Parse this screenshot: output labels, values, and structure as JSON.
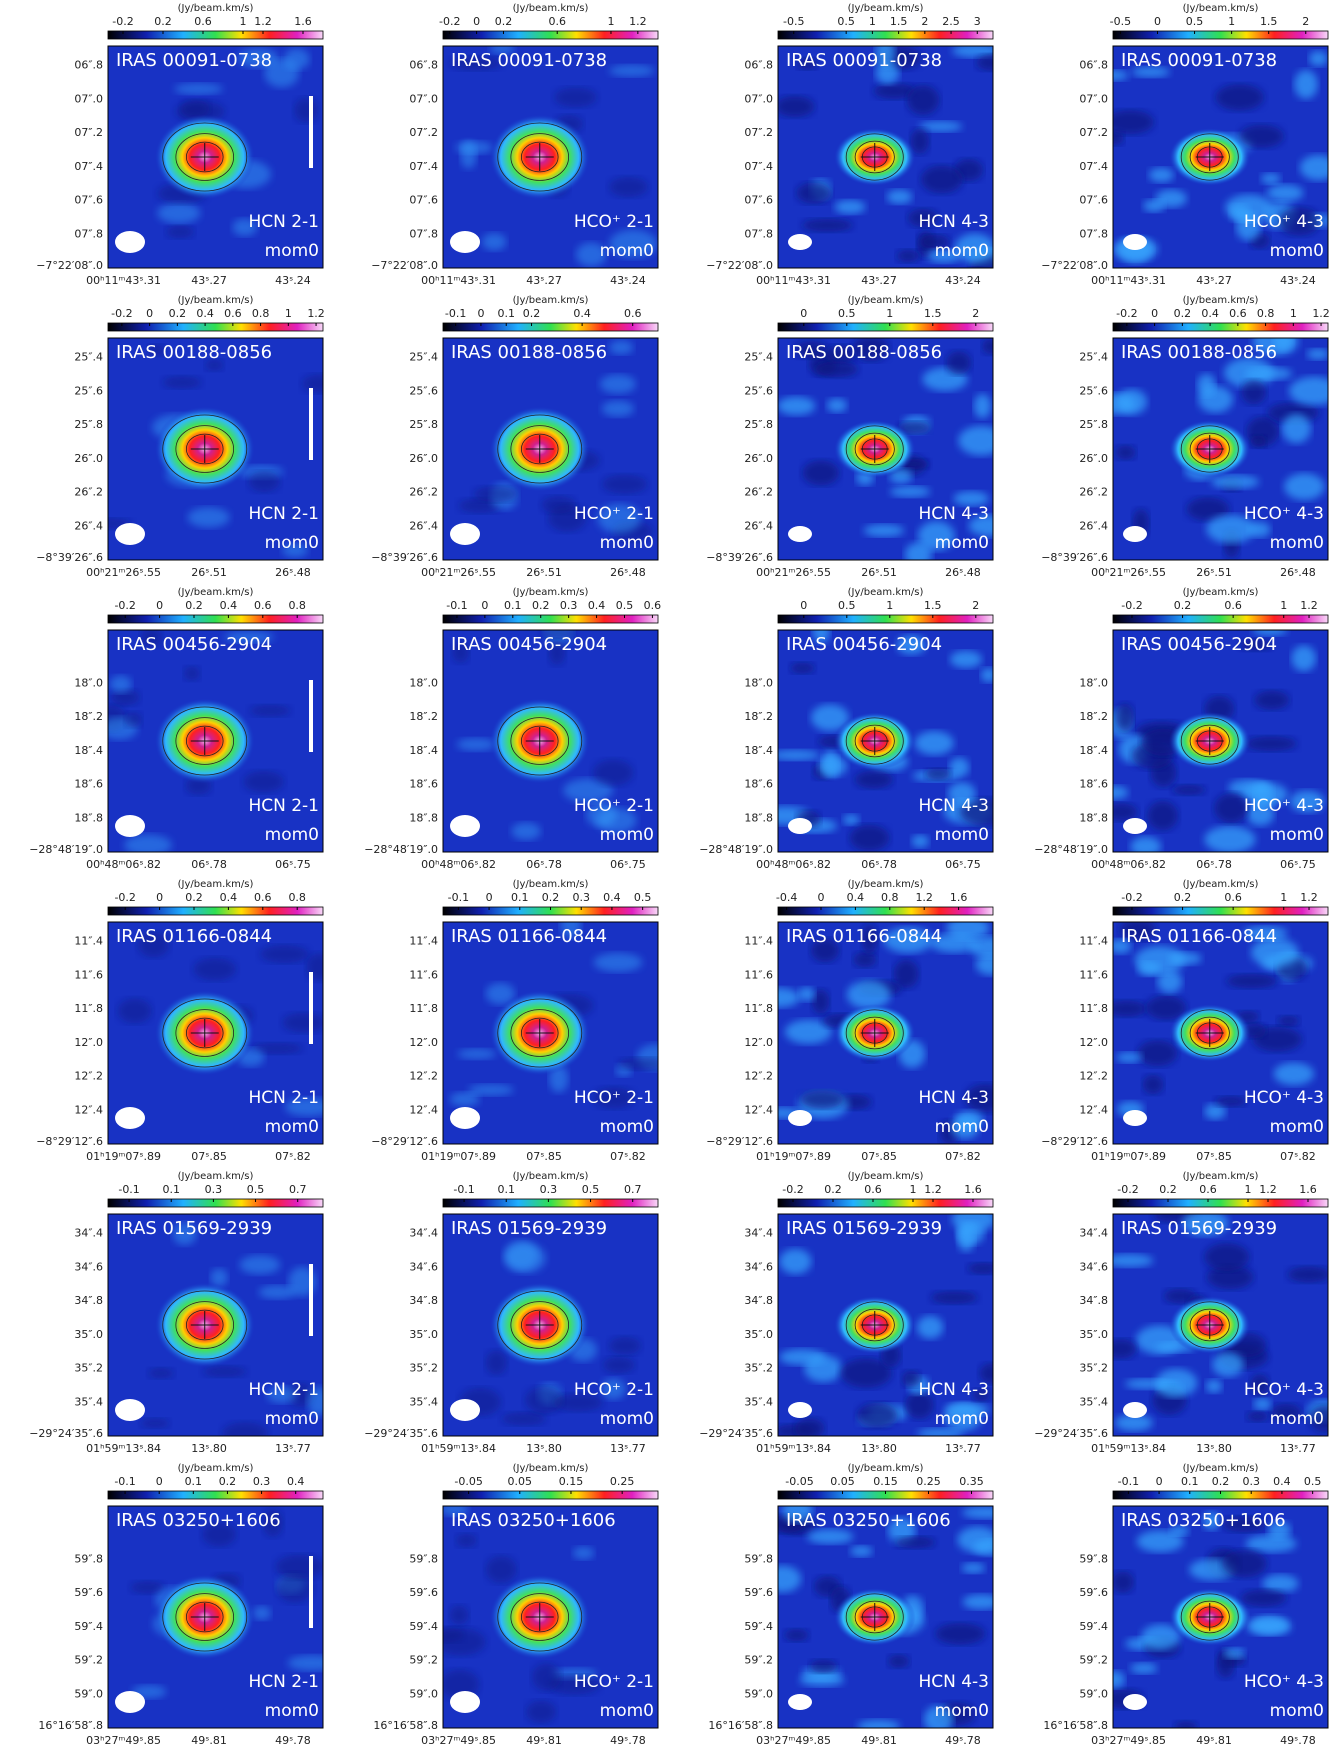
{
  "colorbar_label": "(Jy/beam.km/s)",
  "moment": "mom0",
  "lines": [
    "HCN 2-1",
    "HCO⁺ 2-1",
    "HCN 4-3",
    "HCO⁺ 4-3"
  ],
  "rows": [
    {
      "target": "IRAS 00091-0738",
      "dec_ticks": [
        "06″.8",
        "07″.0",
        "07″.2",
        "07″.4",
        "07″.6",
        "07″.8",
        "−7°22′08″.0"
      ],
      "ra_ticks": [
        "00ʰ11ᵐ43ˢ.31",
        "43ˢ.27",
        "43ˢ.24"
      ],
      "panels": [
        {
          "clim": [
            -0.35,
            1.8
          ],
          "cticks": [
            -0.2,
            0.2,
            0.6,
            1,
            1.2,
            1.6
          ]
        },
        {
          "clim": [
            -0.25,
            1.35
          ],
          "cticks": [
            -0.2,
            0,
            0.2,
            0.6,
            1,
            1.2
          ]
        },
        {
          "clim": [
            -0.8,
            3.3
          ],
          "cticks": [
            -0.5,
            0.5,
            1,
            1.5,
            2,
            2.5,
            3
          ]
        },
        {
          "clim": [
            -0.6,
            2.3
          ],
          "cticks": [
            -0.5,
            0,
            0.5,
            1,
            1.5,
            2
          ]
        }
      ]
    },
    {
      "target": "IRAS 00188-0856",
      "dec_ticks": [
        "25″.4",
        "25″.6",
        "25″.8",
        "26″.0",
        "26″.2",
        "26″.4",
        "−8°39′26″.6"
      ],
      "ra_ticks": [
        "00ʰ21ᵐ26ˢ.55",
        "26ˢ.51",
        "26ˢ.48"
      ],
      "panels": [
        {
          "clim": [
            -0.3,
            1.25
          ],
          "cticks": [
            -0.2,
            0,
            0.2,
            0.4,
            0.6,
            0.8,
            1,
            1.2
          ]
        },
        {
          "clim": [
            -0.15,
            0.7
          ],
          "cticks": [
            -0.1,
            0,
            0.1,
            0.2,
            0.4,
            0.6
          ]
        },
        {
          "clim": [
            -0.3,
            2.2
          ],
          "cticks": [
            0,
            0.5,
            1,
            1.5,
            2
          ]
        },
        {
          "clim": [
            -0.3,
            1.25
          ],
          "cticks": [
            -0.2,
            0,
            0.2,
            0.4,
            0.6,
            0.8,
            1,
            1.2
          ]
        }
      ]
    },
    {
      "target": "IRAS 00456-2904",
      "dec_ticks": [
        "18″.0",
        "18″.2",
        "18″.4",
        "18″.6",
        "18″.8",
        "−28°48′19″.0"
      ],
      "ra_ticks": [
        "00ʰ48ᵐ06ˢ.82",
        "06ˢ.78",
        "06ˢ.75"
      ],
      "panels": [
        {
          "clim": [
            -0.3,
            0.95
          ],
          "cticks": [
            -0.2,
            0,
            0.2,
            0.4,
            0.6,
            0.8
          ]
        },
        {
          "clim": [
            -0.15,
            0.62
          ],
          "cticks": [
            -0.1,
            0,
            0.1,
            0.2,
            0.3,
            0.4,
            0.5,
            0.6
          ]
        },
        {
          "clim": [
            -0.3,
            2.2
          ],
          "cticks": [
            0,
            0.5,
            1,
            1.5,
            2
          ]
        },
        {
          "clim": [
            -0.35,
            1.35
          ],
          "cticks": [
            -0.2,
            0.2,
            0.6,
            1,
            1.2
          ]
        }
      ]
    },
    {
      "target": "IRAS 01166-0844",
      "dec_ticks": [
        "11″.4",
        "11″.6",
        "11″.8",
        "12″.0",
        "12″.2",
        "12″.4",
        "−8°29′12″.6"
      ],
      "ra_ticks": [
        "01ʰ19ᵐ07ˢ.89",
        "07ˢ.85",
        "07ˢ.82"
      ],
      "panels": [
        {
          "clim": [
            -0.3,
            0.95
          ],
          "cticks": [
            -0.2,
            0,
            0.2,
            0.4,
            0.6,
            0.8
          ]
        },
        {
          "clim": [
            -0.15,
            0.55
          ],
          "cticks": [
            -0.1,
            0,
            0.1,
            0.2,
            0.3,
            0.4,
            0.5
          ]
        },
        {
          "clim": [
            -0.5,
            2.0
          ],
          "cticks": [
            -0.4,
            0,
            0.4,
            0.8,
            1.2,
            1.6
          ]
        },
        {
          "clim": [
            -0.35,
            1.35
          ],
          "cticks": [
            -0.2,
            0.2,
            0.6,
            1,
            1.2
          ]
        }
      ]
    },
    {
      "target": "IRAS 01569-2939",
      "dec_ticks": [
        "34″.4",
        "34″.6",
        "34″.8",
        "35″.0",
        "35″.2",
        "35″.4",
        "−29°24′35″.6"
      ],
      "ra_ticks": [
        "01ʰ59ᵐ13ˢ.84",
        "13ˢ.80",
        "13ˢ.77"
      ],
      "panels": [
        {
          "clim": [
            -0.2,
            0.82
          ],
          "cticks": [
            -0.1,
            0.1,
            0.3,
            0.5,
            0.7
          ]
        },
        {
          "clim": [
            -0.2,
            0.82
          ],
          "cticks": [
            -0.1,
            0.1,
            0.3,
            0.5,
            0.7
          ]
        },
        {
          "clim": [
            -0.35,
            1.8
          ],
          "cticks": [
            -0.2,
            0.2,
            0.6,
            1,
            1.2,
            1.6
          ]
        },
        {
          "clim": [
            -0.35,
            1.8
          ],
          "cticks": [
            -0.2,
            0.2,
            0.6,
            1,
            1.2,
            1.6
          ]
        }
      ]
    },
    {
      "target": "IRAS 03250+1606",
      "dec_ticks": [
        "59″.8",
        "59″.6",
        "59″.4",
        "59″.2",
        "59″.0",
        "16°16′58″.8"
      ],
      "ra_ticks": [
        "03ʰ27ᵐ49ˢ.85",
        "49ˢ.81",
        "49ˢ.78"
      ],
      "panels": [
        {
          "clim": [
            -0.15,
            0.48
          ],
          "cticks": [
            -0.1,
            0,
            0.1,
            0.2,
            0.3,
            0.4
          ]
        },
        {
          "clim": [
            -0.1,
            0.32
          ],
          "cticks": [
            -0.05,
            0.05,
            0.15,
            0.25
          ]
        },
        {
          "clim": [
            -0.1,
            0.4
          ],
          "cticks": [
            -0.05,
            0.05,
            0.15,
            0.25,
            0.35
          ]
        },
        {
          "clim": [
            -0.15,
            0.55
          ],
          "cticks": [
            -0.1,
            0,
            0.1,
            0.2,
            0.3,
            0.4,
            0.5
          ]
        }
      ]
    }
  ]
}
